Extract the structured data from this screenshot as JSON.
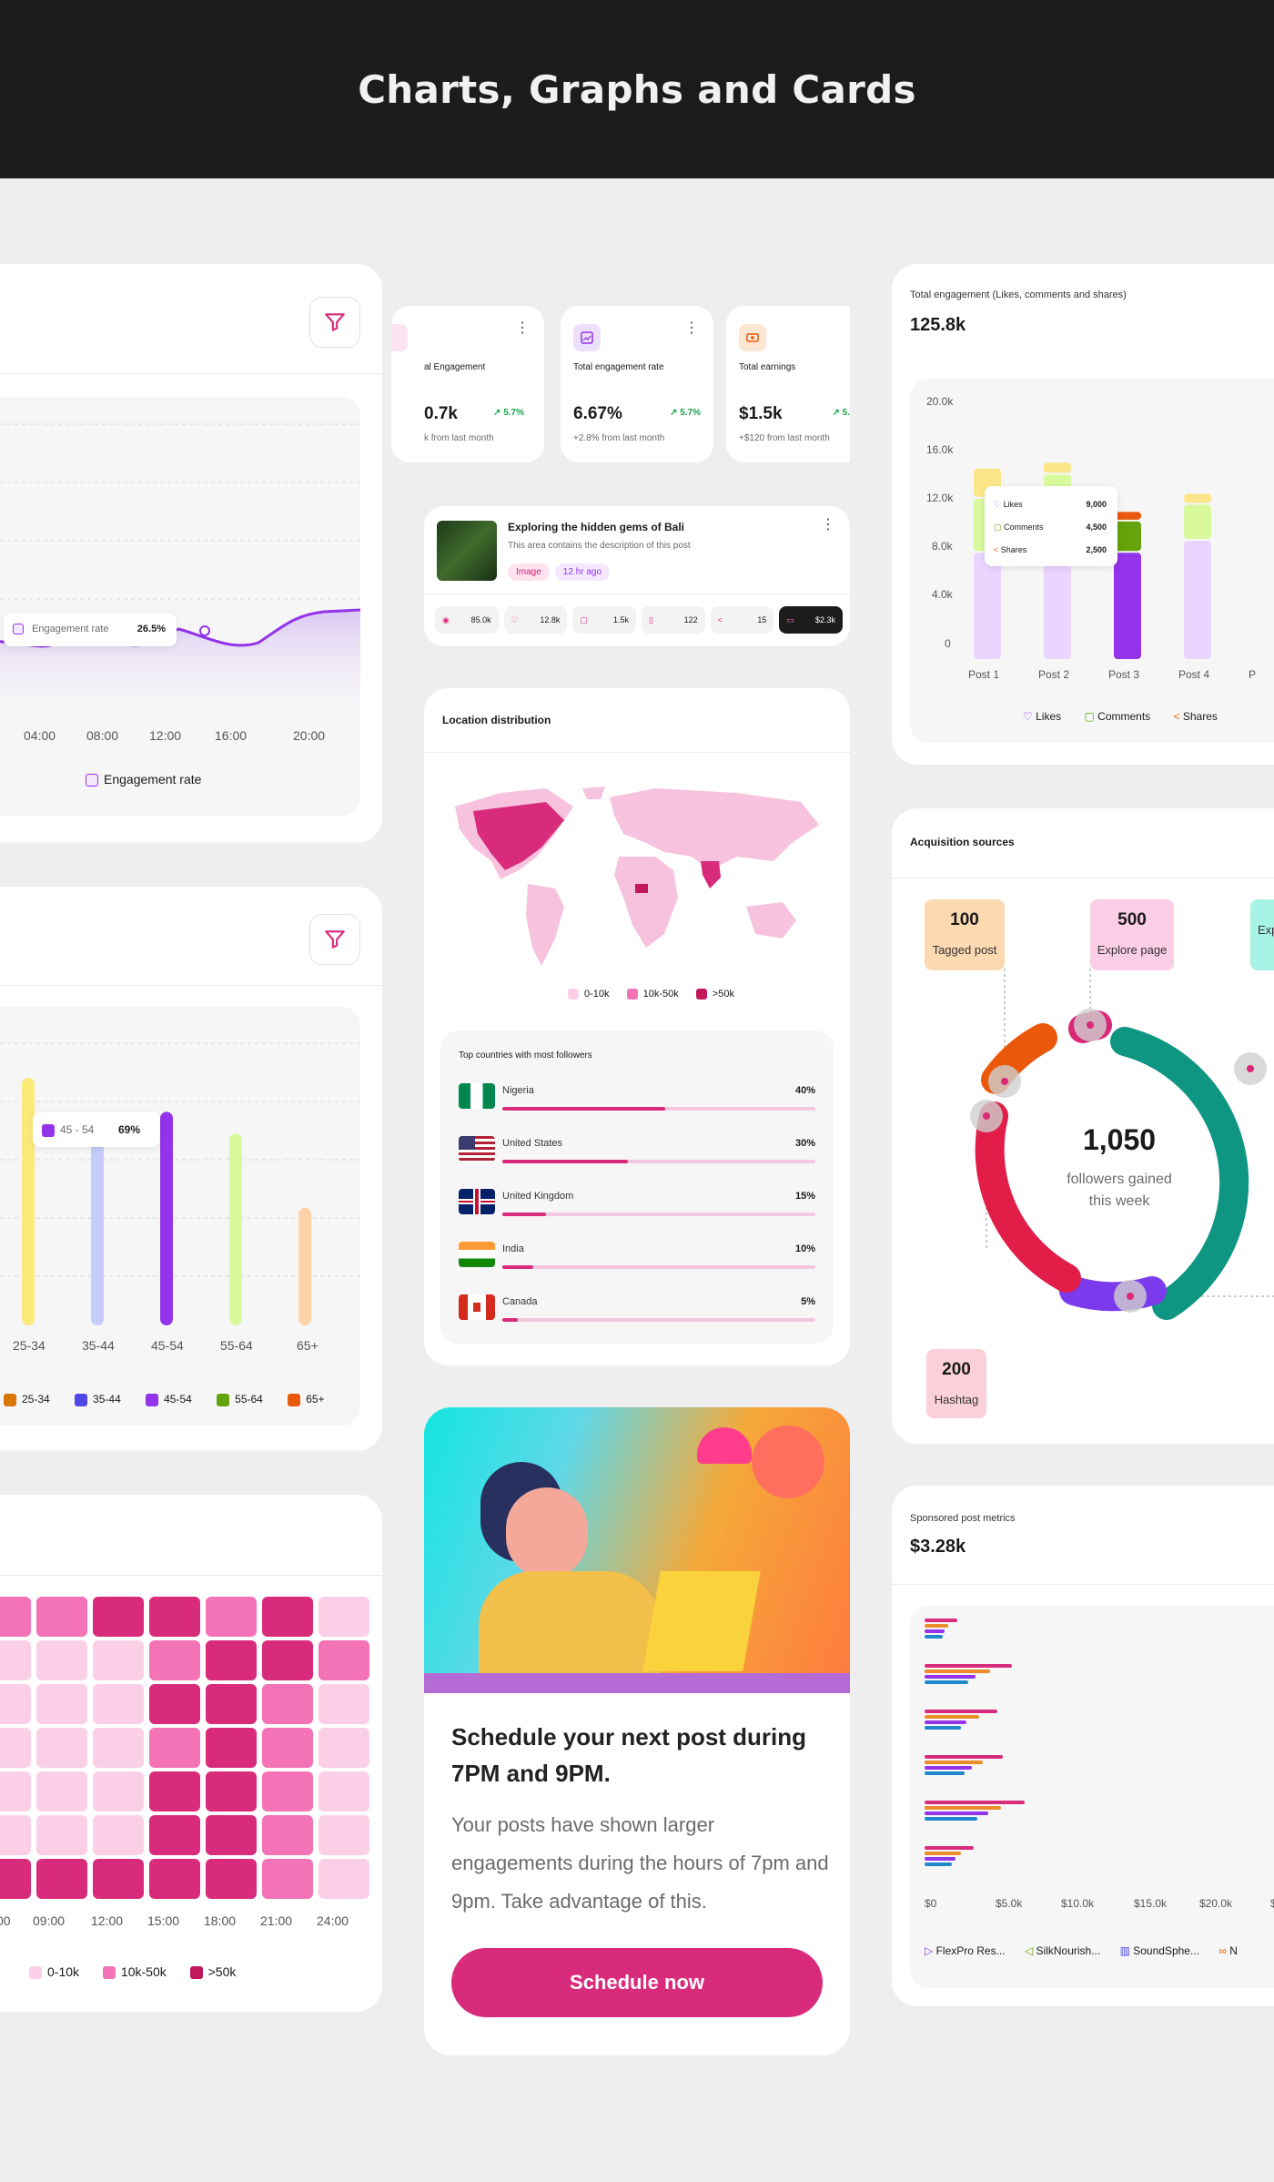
{
  "header": {
    "title": "Charts, Graphs and Cards"
  },
  "engagement_chart": {
    "x_ticks": [
      "04:00",
      "08:00",
      "12:00",
      "16:00",
      "20:00"
    ],
    "tooltip_label": "Engagement rate",
    "tooltip_value": "26.5%",
    "legend": "Engagement rate"
  },
  "age_chart": {
    "categories": [
      "25-34",
      "35-44",
      "45-54",
      "55-64",
      "65+"
    ],
    "tooltip_label": "45 - 54",
    "tooltip_value": "69%",
    "legend": [
      "25-34",
      "35-44",
      "45-54",
      "55-64",
      "65+"
    ]
  },
  "heatmap": {
    "x_ticks": [
      "00",
      "09:00",
      "12:00",
      "15:00",
      "18:00",
      "21:00",
      "24:00"
    ],
    "legend": [
      "0-10k",
      "10k-50k",
      ">50k"
    ]
  },
  "stats": [
    {
      "label": "al Engagement",
      "value": "0.7k",
      "change": "5.7%",
      "sub": "k from last month"
    },
    {
      "label": "Total engagement rate",
      "value": "6.67%",
      "change": "5.7%",
      "sub": "+2.8% from last month"
    },
    {
      "label": "Total earnings",
      "value": "$1.5k",
      "change": "5.",
      "sub": "+$120 from last month"
    }
  ],
  "post": {
    "title": "Exploring the hidden gems of Bali",
    "desc": "This area contains the description of this post",
    "tags": [
      "Image",
      "12 hr ago"
    ],
    "metrics": [
      "85.0k",
      "12.8k",
      "1.5k",
      "122",
      "15",
      "$2.3k"
    ]
  },
  "location": {
    "title": "Location distribution",
    "legend": [
      "0-10k",
      "10k-50k",
      ">50k"
    ],
    "top_title": "Top countries with most followers",
    "countries": [
      {
        "name": "Nigeria",
        "pct": "40%"
      },
      {
        "name": "United States",
        "pct": "30%"
      },
      {
        "name": "United Kingdom",
        "pct": "15%"
      },
      {
        "name": "India",
        "pct": "10%"
      },
      {
        "name": "Canada",
        "pct": "5%"
      }
    ]
  },
  "schedule": {
    "title": "Schedule your next post during 7PM and 9PM.",
    "body": "Your posts have shown larger engagements during the hours of 7pm and 9pm. Take advantage of this.",
    "button": "Schedule now"
  },
  "total_engagement": {
    "subtitle": "Total engagement (Likes, comments and shares)",
    "value": "125.8k",
    "y_ticks": [
      "20.0k",
      "16.0k",
      "12.0k",
      "8.0k",
      "4.0k",
      "0"
    ],
    "x_ticks": [
      "Post 1",
      "Post 2",
      "Post 3",
      "Post 4",
      "P"
    ],
    "tooltip": [
      {
        "label": "Likes",
        "value": "9,000"
      },
      {
        "label": "Comments",
        "value": "4,500"
      },
      {
        "label": "Shares",
        "value": "2,500"
      }
    ],
    "legend": [
      "Likes",
      "Comments",
      "Shares"
    ],
    "colors": {
      "likes": "#9333ea",
      "comments": "#65a30d",
      "shares": "#ea6c0a"
    }
  },
  "acquisition": {
    "title": "Acquisition sources",
    "center_value": "1,050",
    "center_label": "followers gained this week",
    "sources": [
      {
        "value": "100",
        "label": "Tagged post"
      },
      {
        "value": "500",
        "label": "Explore page"
      },
      {
        "value": "200",
        "label": "Hashtag"
      },
      {
        "value": "",
        "label": "Exp"
      }
    ]
  },
  "sponsored": {
    "subtitle": "Sponsored post metrics",
    "value": "$3.28k",
    "x_ticks": [
      "$0",
      "$5.0k",
      "$10.0k",
      "$15.0k",
      "$20.0k",
      "$"
    ],
    "legend": [
      "FlexPro Res...",
      "SilkNourish...",
      "SoundSphe...",
      "N"
    ]
  },
  "chart_data": [
    {
      "type": "bar",
      "title": "",
      "categories": [
        "25-34",
        "35-44",
        "45-54",
        "55-64",
        "65+"
      ],
      "values": [
        80,
        60,
        69,
        62,
        38
      ]
    },
    {
      "type": "bar",
      "title": "Total engagement (Likes, comments and shares)",
      "categories": [
        "Post 1",
        "Post 2",
        "Post 3",
        "Post 4"
      ],
      "series": [
        {
          "name": "Likes",
          "values": [
            9000,
            13000,
            9000,
            10000
          ]
        },
        {
          "name": "Comments",
          "values": [
            4500,
            2500,
            2600,
            3000
          ]
        },
        {
          "name": "Shares",
          "values": [
            2500,
            1000,
            800,
            900
          ]
        }
      ],
      "ylim": [
        0,
        20000
      ]
    }
  ]
}
